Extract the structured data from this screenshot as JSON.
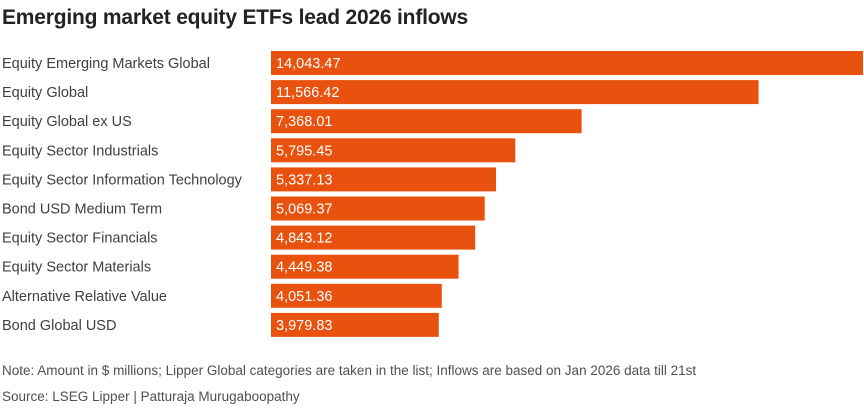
{
  "title": "Emerging market equity ETFs lead 2026 inflows",
  "note": "Note: Amount in $ millions; Lipper Global categories are taken in the list; Inflows are based on Jan 2026 data till 21st",
  "source": "Source: LSEG Lipper | Patturaja Murugaboopathy",
  "colors": {
    "bar": "#e8520e",
    "bar_text": "#ffffff",
    "label": "#404040"
  },
  "chart_data": {
    "type": "bar",
    "orientation": "horizontal",
    "title": "Emerging market equity ETFs lead 2026 inflows",
    "categories": [
      "Equity Emerging Markets Global",
      "Equity Global",
      "Equity Global ex US",
      "Equity Sector Industrials",
      "Equity Sector Information Technology",
      "Bond USD Medium Term",
      "Equity Sector Financials",
      "Equity Sector Materials",
      "Alternative Relative Value",
      "Bond Global USD"
    ],
    "values": [
      14043.47,
      11566.42,
      7368.01,
      5795.45,
      5337.13,
      5069.37,
      4843.12,
      4449.38,
      4051.36,
      3979.83
    ],
    "value_labels": [
      "14,043.47",
      "11,566.42",
      "7,368.01",
      "5,795.45",
      "5,337.13",
      "5,069.37",
      "4,843.12",
      "4,449.38",
      "4,051.36",
      "3,979.83"
    ],
    "xlim": [
      0,
      14043.47
    ],
    "grid": false,
    "legend": "none"
  }
}
